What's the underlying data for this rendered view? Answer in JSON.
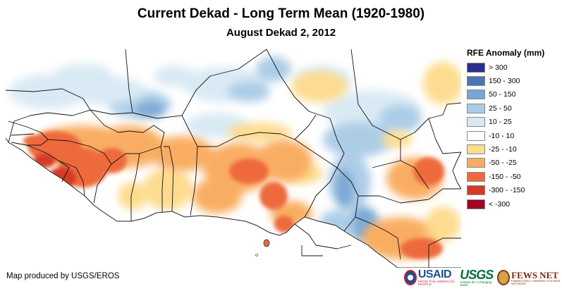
{
  "title": "Current Dekad - Long Term Mean (1920-1980)",
  "subtitle": "August Dekad 2, 2012",
  "legend": {
    "title": "RFE Anomaly (mm)",
    "items": [
      {
        "label": "> 300",
        "color": "#2b2d8f"
      },
      {
        "label": "150 - 300",
        "color": "#4b74b6"
      },
      {
        "label": "50 - 150",
        "color": "#76a6d3"
      },
      {
        "label": "25 - 50",
        "color": "#a9cbe6"
      },
      {
        "label": "10 - 25",
        "color": "#d8e9f4"
      },
      {
        "label": "-10 - 10",
        "color": "#ffffff"
      },
      {
        "label": "-25 - -10",
        "color": "#fddc8f"
      },
      {
        "label": "-50 - -25",
        "color": "#f9ad62"
      },
      {
        "label": "-150 - -50",
        "color": "#ee6a3d"
      },
      {
        "label": "-300 - -150",
        "color": "#d63a26"
      },
      {
        "label": "< -300",
        "color": "#a50026"
      }
    ]
  },
  "credit": "Map produced by USGS/EROS",
  "logos": {
    "usaid": {
      "name": "USAID",
      "tagline": "FROM THE AMERICAN PEOPLE"
    },
    "usgs": {
      "name": "USGS",
      "tagline": "science for a changing world"
    },
    "fews": {
      "name": "FEWS NET",
      "tagline": "FAMINE EARLY WARNING SYSTEMS NETWORK"
    }
  }
}
